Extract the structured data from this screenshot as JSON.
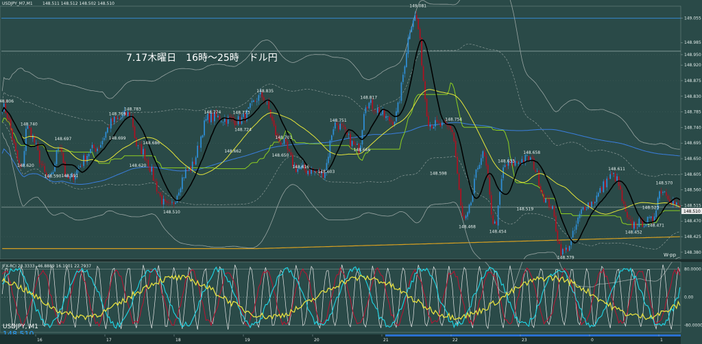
{
  "header": {
    "symbol": "USDJPY_M7,M1",
    "quote": "148.511 148.512 148.502 148.510"
  },
  "annotation": "7.17木曜日　16時～25時　ドル円",
  "colors": {
    "background": "#2a4a48",
    "candle_up": "#2f8fd8",
    "candle_down": "#b01020",
    "ma_black": "#000000",
    "ma_yellow": "#e6e63a",
    "ma_green": "#8fd020",
    "ma_blue": "#3a7fe0",
    "ma_orange": "#d8a020",
    "band_gray": "#9aa6a4",
    "osc_white": "#e8e8e8",
    "osc_cyan": "#20d0e0",
    "osc_red": "#c01030",
    "osc_yellow": "#e6e040"
  },
  "chart_data": {
    "type": "candlestick",
    "timeframe": "M1",
    "price_axis": {
      "ylim": [
        148.36,
        149.09
      ],
      "ticks": [
        "149.055",
        "148.985",
        "148.950",
        "148.920",
        "148.875",
        "148.830",
        "148.785",
        "148.740",
        "148.695",
        "148.650",
        "148.605",
        "148.560",
        "148.515",
        "148.470",
        "148.425",
        "148.380"
      ],
      "current_price": "148.510",
      "hlines": [
        149.055,
        148.96
      ]
    },
    "x_labels": [
      "16",
      "17",
      "18",
      "19",
      "20",
      "21",
      "22",
      "23",
      "0",
      "1"
    ],
    "swing_labels": [
      {
        "value": "148.806",
        "x": 0,
        "y": 148.806
      },
      {
        "value": "148.740",
        "x": 14,
        "y": 148.74
      },
      {
        "value": "148.697",
        "x": 34,
        "y": 148.697
      },
      {
        "value": "148.620",
        "x": 12,
        "y": 148.62
      },
      {
        "value": "148.590",
        "x": 28,
        "y": 148.59
      },
      {
        "value": "148.591",
        "x": 38,
        "y": 148.591
      },
      {
        "value": "148.783",
        "x": 75,
        "y": 148.783
      },
      {
        "value": "148.769",
        "x": 66,
        "y": 148.769
      },
      {
        "value": "148.699",
        "x": 66,
        "y": 148.699
      },
      {
        "value": "148.686",
        "x": 86,
        "y": 148.686
      },
      {
        "value": "148.620",
        "x": 78,
        "y": 148.62
      },
      {
        "value": "148.510",
        "x": 98,
        "y": 148.51
      },
      {
        "value": "148.774",
        "x": 122,
        "y": 148.774
      },
      {
        "value": "148.773",
        "x": 139,
        "y": 148.773
      },
      {
        "value": "148.835",
        "x": 153,
        "y": 148.835
      },
      {
        "value": "148.724",
        "x": 140,
        "y": 148.724
      },
      {
        "value": "148.662",
        "x": 134,
        "y": 148.662
      },
      {
        "value": "148.701",
        "x": 164,
        "y": 148.701
      },
      {
        "value": "148.650",
        "x": 162,
        "y": 148.65
      },
      {
        "value": "148.616",
        "x": 174,
        "y": 148.616
      },
      {
        "value": "148.603",
        "x": 189,
        "y": 148.603
      },
      {
        "value": "148.751",
        "x": 196,
        "y": 148.751
      },
      {
        "value": "148.666",
        "x": 210,
        "y": 148.666
      },
      {
        "value": "148.817",
        "x": 214,
        "y": 148.817
      },
      {
        "value": "149.081",
        "x": 243,
        "y": 149.081
      },
      {
        "value": "148.754",
        "x": 264,
        "y": 148.754
      },
      {
        "value": "148.598",
        "x": 255,
        "y": 148.598
      },
      {
        "value": "148.468",
        "x": 272,
        "y": 148.468
      },
      {
        "value": "148.454",
        "x": 290,
        "y": 148.454
      },
      {
        "value": "148.633",
        "x": 295,
        "y": 148.633
      },
      {
        "value": "148.658",
        "x": 310,
        "y": 148.658
      },
      {
        "value": "148.519",
        "x": 306,
        "y": 148.519
      },
      {
        "value": "148.379",
        "x": 330,
        "y": 148.379
      },
      {
        "value": "148.611",
        "x": 360,
        "y": 148.611
      },
      {
        "value": "148.570",
        "x": 388,
        "y": 148.57
      },
      {
        "value": "148.523",
        "x": 380,
        "y": 148.523
      },
      {
        "value": "148.452",
        "x": 370,
        "y": 148.452
      },
      {
        "value": "148.471",
        "x": 383,
        "y": 148.471
      }
    ],
    "wpp_label": "W-pp",
    "num_bars": 400,
    "key_points": [
      [
        0,
        148.8
      ],
      [
        12,
        148.62
      ],
      [
        14,
        148.74
      ],
      [
        28,
        148.59
      ],
      [
        34,
        148.69
      ],
      [
        38,
        148.59
      ],
      [
        55,
        148.68
      ],
      [
        66,
        148.76
      ],
      [
        75,
        148.78
      ],
      [
        80,
        148.68
      ],
      [
        98,
        148.51
      ],
      [
        110,
        148.62
      ],
      [
        122,
        148.77
      ],
      [
        139,
        148.76
      ],
      [
        153,
        148.83
      ],
      [
        164,
        148.7
      ],
      [
        174,
        148.62
      ],
      [
        189,
        148.61
      ],
      [
        196,
        148.75
      ],
      [
        210,
        148.68
      ],
      [
        214,
        148.81
      ],
      [
        230,
        148.76
      ],
      [
        243,
        149.06
      ],
      [
        252,
        148.75
      ],
      [
        264,
        148.74
      ],
      [
        272,
        148.47
      ],
      [
        283,
        148.66
      ],
      [
        290,
        148.46
      ],
      [
        296,
        148.63
      ],
      [
        310,
        148.65
      ],
      [
        322,
        148.52
      ],
      [
        330,
        148.38
      ],
      [
        345,
        148.52
      ],
      [
        360,
        148.6
      ],
      [
        370,
        148.46
      ],
      [
        382,
        148.47
      ],
      [
        388,
        148.56
      ],
      [
        399,
        148.51
      ]
    ],
    "indicator": {
      "name": "JFX-RCI 28.3333 -46.8889 16.1001 22.7937",
      "levels": [
        "80.0000",
        "0.00",
        "-80.0000"
      ],
      "ylim": [
        -100,
        100
      ]
    },
    "bottom_label": {
      "symbol": "USDJPY, M1",
      "price": "148.510"
    }
  }
}
